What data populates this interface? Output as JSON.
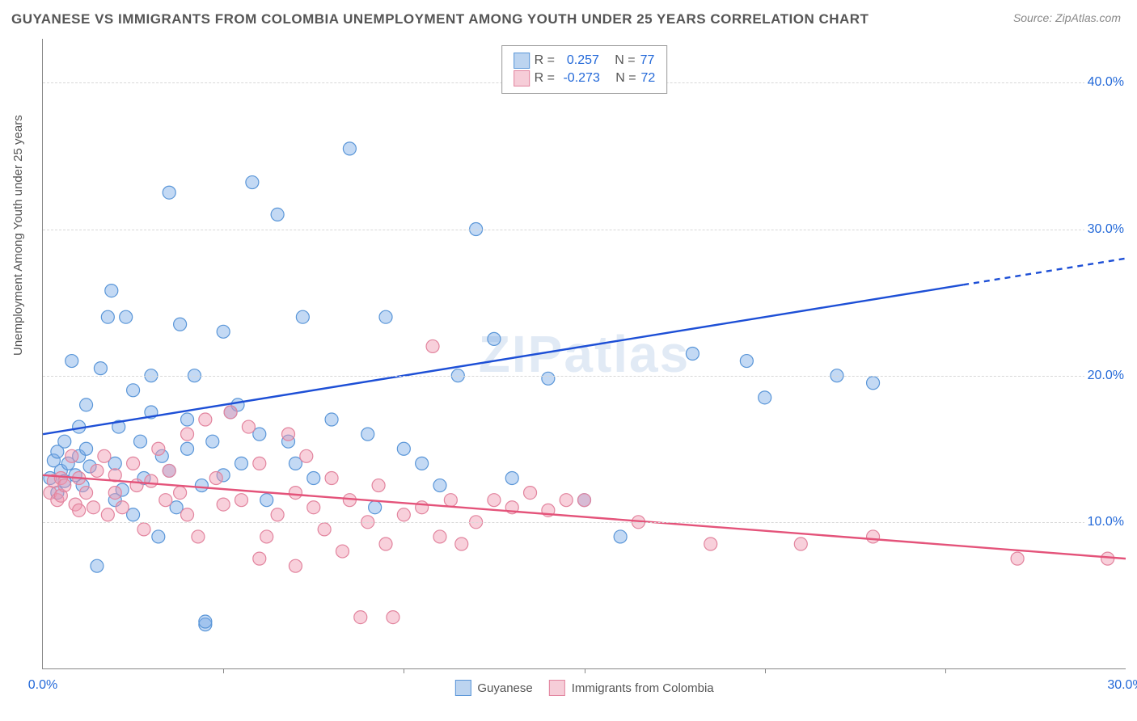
{
  "title": "GUYANESE VS IMMIGRANTS FROM COLOMBIA UNEMPLOYMENT AMONG YOUTH UNDER 25 YEARS CORRELATION CHART",
  "source_label": "Source: ZipAtlas.com",
  "y_axis_title": "Unemployment Among Youth under 25 years",
  "watermark_text": "ZIPatlas",
  "chart": {
    "type": "scatter",
    "background_color": "#ffffff",
    "grid_color": "#d8d8d8",
    "axis_color": "#888888",
    "xlim": [
      0,
      30
    ],
    "ylim": [
      0,
      43
    ],
    "yticks": [
      10,
      20,
      30,
      40
    ],
    "ytick_labels": [
      "10.0%",
      "20.0%",
      "30.0%",
      "40.0%"
    ],
    "xticks_visible_labels": [
      {
        "x": 0,
        "label": "0.0%"
      },
      {
        "x": 30,
        "label": "30.0%"
      }
    ],
    "xticks_marks": [
      5,
      10,
      15,
      20,
      25
    ],
    "marker_radius": 8,
    "marker_stroke_width": 1.2,
    "label_fontsize": 16,
    "axis_label_color": "#2268d8"
  },
  "series": [
    {
      "id": "guyanese",
      "label": "Guyanese",
      "fill_color": "rgba(122,170,230,0.45)",
      "stroke_color": "#5a96d8",
      "swatch_fill": "#bcd4f0",
      "swatch_stroke": "#5a96d8",
      "R_label": "R =",
      "R_value": "0.257",
      "N_label": "N =",
      "N_value": "77",
      "trend": {
        "x1": 0,
        "y1": 16.0,
        "x2": 30,
        "y2": 28.0,
        "dash_from_x": 25.5,
        "color": "#1d4fd6",
        "width": 2.4
      },
      "points": [
        [
          0.2,
          13.0
        ],
        [
          0.3,
          14.2
        ],
        [
          0.4,
          12.0
        ],
        [
          0.4,
          14.8
        ],
        [
          0.5,
          13.5
        ],
        [
          0.6,
          12.8
        ],
        [
          0.6,
          15.5
        ],
        [
          0.7,
          14.0
        ],
        [
          0.8,
          21.0
        ],
        [
          0.9,
          13.2
        ],
        [
          1.0,
          16.5
        ],
        [
          1.0,
          14.5
        ],
        [
          1.1,
          12.5
        ],
        [
          1.2,
          18.0
        ],
        [
          1.2,
          15.0
        ],
        [
          1.3,
          13.8
        ],
        [
          1.5,
          7.0
        ],
        [
          1.6,
          20.5
        ],
        [
          1.8,
          24.0
        ],
        [
          1.9,
          25.8
        ],
        [
          2.0,
          11.5
        ],
        [
          2.0,
          14.0
        ],
        [
          2.1,
          16.5
        ],
        [
          2.2,
          12.2
        ],
        [
          2.3,
          24.0
        ],
        [
          2.5,
          19.0
        ],
        [
          2.5,
          10.5
        ],
        [
          2.7,
          15.5
        ],
        [
          2.8,
          13.0
        ],
        [
          3.0,
          17.5
        ],
        [
          3.0,
          20.0
        ],
        [
          3.2,
          9.0
        ],
        [
          3.3,
          14.5
        ],
        [
          3.5,
          13.5
        ],
        [
          3.5,
          32.5
        ],
        [
          3.7,
          11.0
        ],
        [
          3.8,
          23.5
        ],
        [
          4.0,
          17.0
        ],
        [
          4.0,
          15.0
        ],
        [
          4.2,
          20.0
        ],
        [
          4.4,
          12.5
        ],
        [
          4.5,
          3.0
        ],
        [
          4.5,
          3.2
        ],
        [
          4.7,
          15.5
        ],
        [
          5.0,
          23.0
        ],
        [
          5.0,
          13.2
        ],
        [
          5.2,
          17.5
        ],
        [
          5.4,
          18.0
        ],
        [
          5.5,
          14.0
        ],
        [
          5.8,
          33.2
        ],
        [
          6.0,
          16.0
        ],
        [
          6.2,
          11.5
        ],
        [
          6.5,
          31.0
        ],
        [
          6.8,
          15.5
        ],
        [
          7.0,
          14.0
        ],
        [
          7.2,
          24.0
        ],
        [
          7.5,
          13.0
        ],
        [
          8.0,
          17.0
        ],
        [
          8.5,
          35.5
        ],
        [
          9.0,
          16.0
        ],
        [
          9.2,
          11.0
        ],
        [
          9.5,
          24.0
        ],
        [
          10.0,
          15.0
        ],
        [
          10.5,
          14.0
        ],
        [
          11.0,
          12.5
        ],
        [
          11.5,
          20.0
        ],
        [
          12.0,
          30.0
        ],
        [
          12.5,
          22.5
        ],
        [
          13.0,
          13.0
        ],
        [
          14.0,
          19.8
        ],
        [
          15.0,
          11.5
        ],
        [
          16.0,
          9.0
        ],
        [
          18.0,
          21.5
        ],
        [
          19.5,
          21.0
        ],
        [
          20.0,
          18.5
        ],
        [
          22.0,
          20.0
        ],
        [
          23.0,
          19.5
        ]
      ]
    },
    {
      "id": "colombia",
      "label": "Immigrants from Colombia",
      "fill_color": "rgba(240,150,175,0.45)",
      "stroke_color": "#e2849e",
      "swatch_fill": "#f6cdd8",
      "swatch_stroke": "#e2849e",
      "R_label": "R =",
      "R_value": "-0.273",
      "N_label": "N =",
      "N_value": "72",
      "trend": {
        "x1": 0,
        "y1": 13.2,
        "x2": 30,
        "y2": 7.5,
        "color": "#e4537a",
        "width": 2.4
      },
      "points": [
        [
          0.2,
          12.0
        ],
        [
          0.3,
          12.8
        ],
        [
          0.4,
          11.5
        ],
        [
          0.5,
          13.0
        ],
        [
          0.5,
          11.8
        ],
        [
          0.6,
          12.5
        ],
        [
          0.8,
          14.5
        ],
        [
          0.9,
          11.2
        ],
        [
          1.0,
          13.0
        ],
        [
          1.0,
          10.8
        ],
        [
          1.2,
          12.0
        ],
        [
          1.4,
          11.0
        ],
        [
          1.5,
          13.5
        ],
        [
          1.7,
          14.5
        ],
        [
          1.8,
          10.5
        ],
        [
          2.0,
          12.0
        ],
        [
          2.0,
          13.2
        ],
        [
          2.2,
          11.0
        ],
        [
          2.5,
          14.0
        ],
        [
          2.6,
          12.5
        ],
        [
          2.8,
          9.5
        ],
        [
          3.0,
          12.8
        ],
        [
          3.2,
          15.0
        ],
        [
          3.4,
          11.5
        ],
        [
          3.5,
          13.5
        ],
        [
          3.8,
          12.0
        ],
        [
          4.0,
          10.5
        ],
        [
          4.0,
          16.0
        ],
        [
          4.3,
          9.0
        ],
        [
          4.5,
          17.0
        ],
        [
          4.8,
          13.0
        ],
        [
          5.0,
          11.2
        ],
        [
          5.2,
          17.5
        ],
        [
          5.5,
          11.5
        ],
        [
          5.7,
          16.5
        ],
        [
          6.0,
          14.0
        ],
        [
          6.0,
          7.5
        ],
        [
          6.2,
          9.0
        ],
        [
          6.5,
          10.5
        ],
        [
          6.8,
          16.0
        ],
        [
          7.0,
          12.0
        ],
        [
          7.0,
          7.0
        ],
        [
          7.3,
          14.5
        ],
        [
          7.5,
          11.0
        ],
        [
          7.8,
          9.5
        ],
        [
          8.0,
          13.0
        ],
        [
          8.3,
          8.0
        ],
        [
          8.5,
          11.5
        ],
        [
          8.8,
          3.5
        ],
        [
          9.0,
          10.0
        ],
        [
          9.3,
          12.5
        ],
        [
          9.5,
          8.5
        ],
        [
          9.7,
          3.5
        ],
        [
          10.0,
          10.5
        ],
        [
          10.5,
          11.0
        ],
        [
          10.8,
          22.0
        ],
        [
          11.0,
          9.0
        ],
        [
          11.3,
          11.5
        ],
        [
          11.6,
          8.5
        ],
        [
          12.0,
          10.0
        ],
        [
          12.5,
          11.5
        ],
        [
          13.0,
          11.0
        ],
        [
          13.5,
          12.0
        ],
        [
          14.0,
          10.8
        ],
        [
          14.5,
          11.5
        ],
        [
          15.0,
          11.5
        ],
        [
          16.5,
          10.0
        ],
        [
          18.5,
          8.5
        ],
        [
          21.0,
          8.5
        ],
        [
          23.0,
          9.0
        ],
        [
          27.0,
          7.5
        ],
        [
          29.5,
          7.5
        ]
      ]
    }
  ]
}
